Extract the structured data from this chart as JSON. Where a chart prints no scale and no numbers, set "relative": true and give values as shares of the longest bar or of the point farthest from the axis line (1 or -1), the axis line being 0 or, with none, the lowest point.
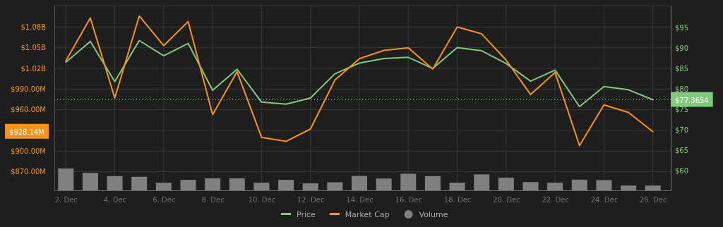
{
  "chart_data": [
    {
      "type": "line",
      "categories": [
        "2. Dec",
        null,
        "4. Dec",
        null,
        "6. Dec",
        null,
        "8. Dec",
        null,
        "10. Dec",
        null,
        "12. Dec",
        null,
        "14. Dec",
        null,
        "16. Dec",
        null,
        "18. Dec",
        null,
        "20. Dec",
        null,
        "22. Dec",
        null,
        "24. Dec",
        null,
        "26. Dec"
      ],
      "series": [
        {
          "name": "Price",
          "color": "#82c97c",
          "axis": "y2",
          "values": [
            86.5,
            91.6,
            81.8,
            91.8,
            88.1,
            91.1,
            79.7,
            84.8,
            76.8,
            76.3,
            77.8,
            83.7,
            86.3,
            87.4,
            87.7,
            85.0,
            90.1,
            89.3,
            86.2,
            81.9,
            84.6,
            75.7,
            80.6,
            79.8,
            77.37
          ]
        },
        {
          "name": "Market Cap",
          "color": "#f7931a",
          "axis": "y",
          "values": [
            1031000000,
            1093000000,
            977000000,
            1096000000,
            1053000000,
            1088000000,
            953000000,
            1015000000,
            920000000,
            914000000,
            932000000,
            1003000000,
            1034000000,
            1046000000,
            1050000000,
            1019000000,
            1080000000,
            1070000000,
            1032000000,
            982000000,
            1014000000,
            908000000,
            967000000,
            956000000,
            928140000
          ]
        }
      ],
      "ylim": [
        843000000,
        1111000000
      ],
      "yticks": [
        {
          "value": 870000000,
          "label": "$870.00M"
        },
        {
          "value": 900000000,
          "label": "$900.00M"
        },
        {
          "value": 930000000,
          "label": null
        },
        {
          "value": 960000000,
          "label": "$960.00M"
        },
        {
          "value": 990000000,
          "label": "$990.00M"
        },
        {
          "value": 1020000000,
          "label": "$1.02B"
        },
        {
          "value": 1050000000,
          "label": "$1.05B"
        },
        {
          "value": 1080000000,
          "label": "$1.08B"
        }
      ],
      "y2lim": [
        55.3,
        100.3
      ],
      "y2ticks": [
        {
          "value": 60,
          "label": "$60"
        },
        {
          "value": 65,
          "label": "$65"
        },
        {
          "value": 70,
          "label": "$70"
        },
        {
          "value": 75,
          "label": "$75"
        },
        {
          "value": 80,
          "label": "$80"
        },
        {
          "value": 85,
          "label": "$85"
        },
        {
          "value": 90,
          "label": "$90"
        },
        {
          "value": 95,
          "label": "$95"
        }
      ],
      "ref_lines": [
        {
          "axis": "y2",
          "value": 77.3654,
          "label": "$77.3654",
          "color": "#82c97c",
          "line_style": "dotted"
        }
      ],
      "annotations": [
        "$928.14M"
      ],
      "grid": true,
      "legend": "bottom"
    },
    {
      "type": "bar",
      "relative": true,
      "legend": "bottom",
      "categories": [
        null,
        null,
        null,
        null,
        null,
        null,
        null,
        null,
        null,
        null,
        null,
        null,
        null,
        null,
        null,
        null,
        null,
        null,
        null,
        null,
        null,
        null,
        null,
        null,
        null
      ],
      "series": [
        {
          "name": "Volume",
          "color": "#808080",
          "values": [
            1,
            0.8,
            0.65,
            0.62,
            0.35,
            0.48,
            0.55,
            0.55,
            0.35,
            0.48,
            0.32,
            0.37,
            0.66,
            0.54,
            0.76,
            0.65,
            0.35,
            0.73,
            0.58,
            0.38,
            0.35,
            0.49,
            0.47,
            0.22,
            0.22
          ]
        }
      ]
    }
  ]
}
